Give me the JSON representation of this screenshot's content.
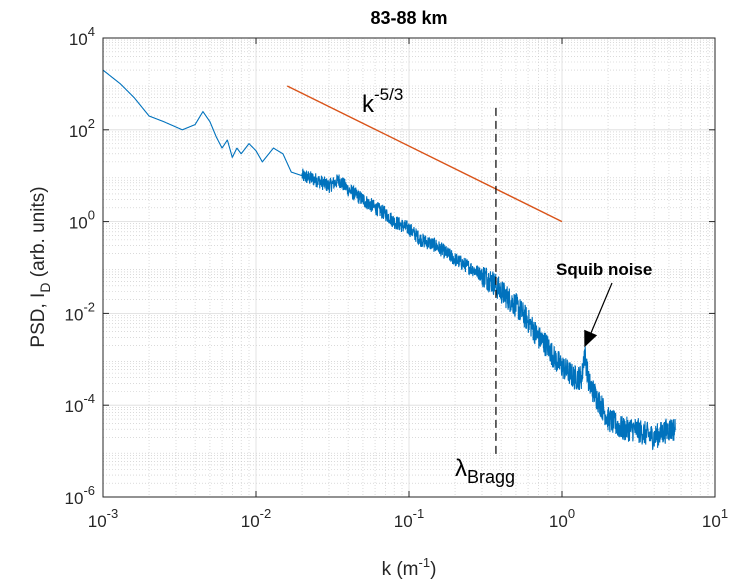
{
  "chart_data": {
    "type": "line",
    "title": "83-88 km",
    "xlabel": "k (m",
    "xlabel_sup": "-1",
    "xlabel_end": ")",
    "ylabel": "PSD, I",
    "ylabel_sub": "D",
    "ylabel_end": " (arb. units)",
    "xscale": "log",
    "yscale": "log",
    "xlim": [
      0.001,
      10
    ],
    "ylim": [
      1e-06,
      10000
    ],
    "grid": true,
    "minor_grid": true,
    "x_ticks": [
      {
        "base": "10",
        "exp": "-3"
      },
      {
        "base": "10",
        "exp": "-2"
      },
      {
        "base": "10",
        "exp": "-1"
      },
      {
        "base": "10",
        "exp": "0"
      },
      {
        "base": "10",
        "exp": "1"
      }
    ],
    "y_ticks": [
      {
        "base": "10",
        "exp": "-6"
      },
      {
        "base": "10",
        "exp": "-4"
      },
      {
        "base": "10",
        "exp": "-2"
      },
      {
        "base": "10",
        "exp": "0"
      },
      {
        "base": "10",
        "exp": "2"
      },
      {
        "base": "10",
        "exp": "4"
      }
    ],
    "series": [
      {
        "color": "#0072BD",
        "x": [
          0.001,
          0.0013,
          0.0016,
          0.002,
          0.0025,
          0.0033,
          0.004,
          0.0045,
          0.005,
          0.0055,
          0.006,
          0.0065,
          0.007,
          0.0075,
          0.008,
          0.009,
          0.01,
          0.011,
          0.013,
          0.015,
          0.017,
          0.02,
          0.025,
          0.03,
          0.035,
          0.04,
          0.05,
          0.06,
          0.07,
          0.08,
          0.1,
          0.12,
          0.15,
          0.2,
          0.25,
          0.3,
          0.35,
          0.4,
          0.5,
          0.6,
          0.7,
          0.8,
          0.9,
          1.0,
          1.2,
          1.35,
          1.4,
          1.5,
          1.8,
          2.0,
          2.5,
          3.0,
          4.0,
          5.0,
          5.5
        ],
        "y": [
          2000,
          1000,
          500,
          200,
          150,
          100,
          130,
          250,
          150,
          70,
          40,
          60,
          25,
          40,
          30,
          50,
          35,
          20,
          40,
          30,
          12,
          10,
          8,
          6,
          8,
          5,
          3,
          2,
          1.5,
          1.0,
          0.7,
          0.4,
          0.3,
          0.15,
          0.1,
          0.07,
          0.05,
          0.03,
          0.015,
          0.007,
          0.003,
          0.002,
          0.001,
          0.0007,
          0.0004,
          0.0004,
          0.0015,
          0.0003,
          0.0001,
          5e-05,
          3e-05,
          3e-05,
          2e-05,
          3e-05,
          3e-05
        ]
      },
      {
        "name": "k-5/3 reference",
        "color": "#D95319",
        "x": [
          0.016,
          1.0
        ],
        "y": [
          900,
          1.0
        ]
      }
    ],
    "vline": {
      "x": 0.37,
      "style": "dashed",
      "color": "#000000"
    },
    "annotations": {
      "slope_base": "k",
      "slope_exp": "-5/3",
      "bragg_symbol": "λ",
      "bragg_sub": "Bragg",
      "squib": "Squib noise"
    },
    "arrow_target": {
      "x": 1.4,
      "y": 0.0015
    }
  }
}
